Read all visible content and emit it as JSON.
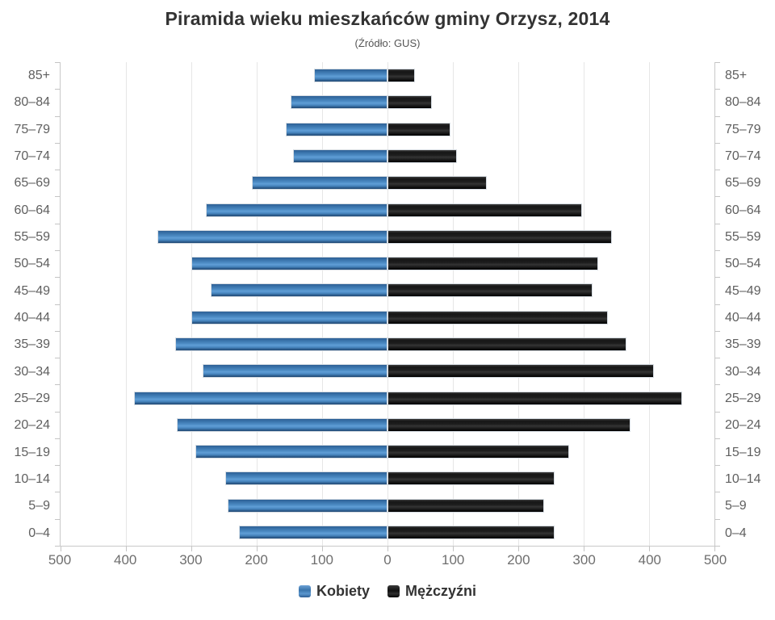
{
  "header": {
    "title": "Piramida wieku mieszkańców gminy Orzysz, 2014",
    "subtitle": "(Źródło: GUS)"
  },
  "legend": {
    "items": [
      {
        "label": "Kobiety",
        "series": "women"
      },
      {
        "label": "Mężczyźni",
        "series": "men"
      }
    ]
  },
  "colors": {
    "women_blue": "#4a86c2",
    "men_black": "#1a1a1a",
    "gridline": "#e6e6e6",
    "axis": "#c8c8c8",
    "axis_label_gray": "#666666",
    "title_text": "#333333"
  },
  "chart_data": {
    "type": "bar",
    "variant": "population-pyramid",
    "title": "Piramida wieku mieszkańców gminy Orzysz, 2014",
    "subtitle": "(Źródło: GUS)",
    "categories": [
      "85+",
      "80–84",
      "75–79",
      "70–74",
      "65–69",
      "60–64",
      "55–59",
      "50–54",
      "45–49",
      "40–44",
      "35–39",
      "30–34",
      "25–29",
      "20–24",
      "15–19",
      "10–14",
      "5–9",
      "0–4"
    ],
    "series": [
      {
        "name": "Kobiety",
        "side": "left",
        "color": "#4a86c2",
        "values": [
          112,
          148,
          155,
          144,
          207,
          278,
          352,
          300,
          271,
          300,
          325,
          283,
          388,
          322,
          294,
          248,
          245,
          227
        ]
      },
      {
        "name": "Mężczyźni",
        "side": "right",
        "color": "#1a1a1a",
        "values": [
          42,
          68,
          96,
          106,
          152,
          298,
          343,
          322,
          313,
          337,
          366,
          408,
          451,
          372,
          278,
          255,
          240,
          255
        ]
      }
    ],
    "x_axis": {
      "lim": [
        -500,
        500
      ],
      "tick_step": 100,
      "tick_labels": [
        "500",
        "400",
        "300",
        "200",
        "100",
        "0",
        "100",
        "200",
        "300",
        "400",
        "500"
      ]
    },
    "y_axis_sides": "both",
    "grid": true,
    "legend_position": "bottom"
  }
}
